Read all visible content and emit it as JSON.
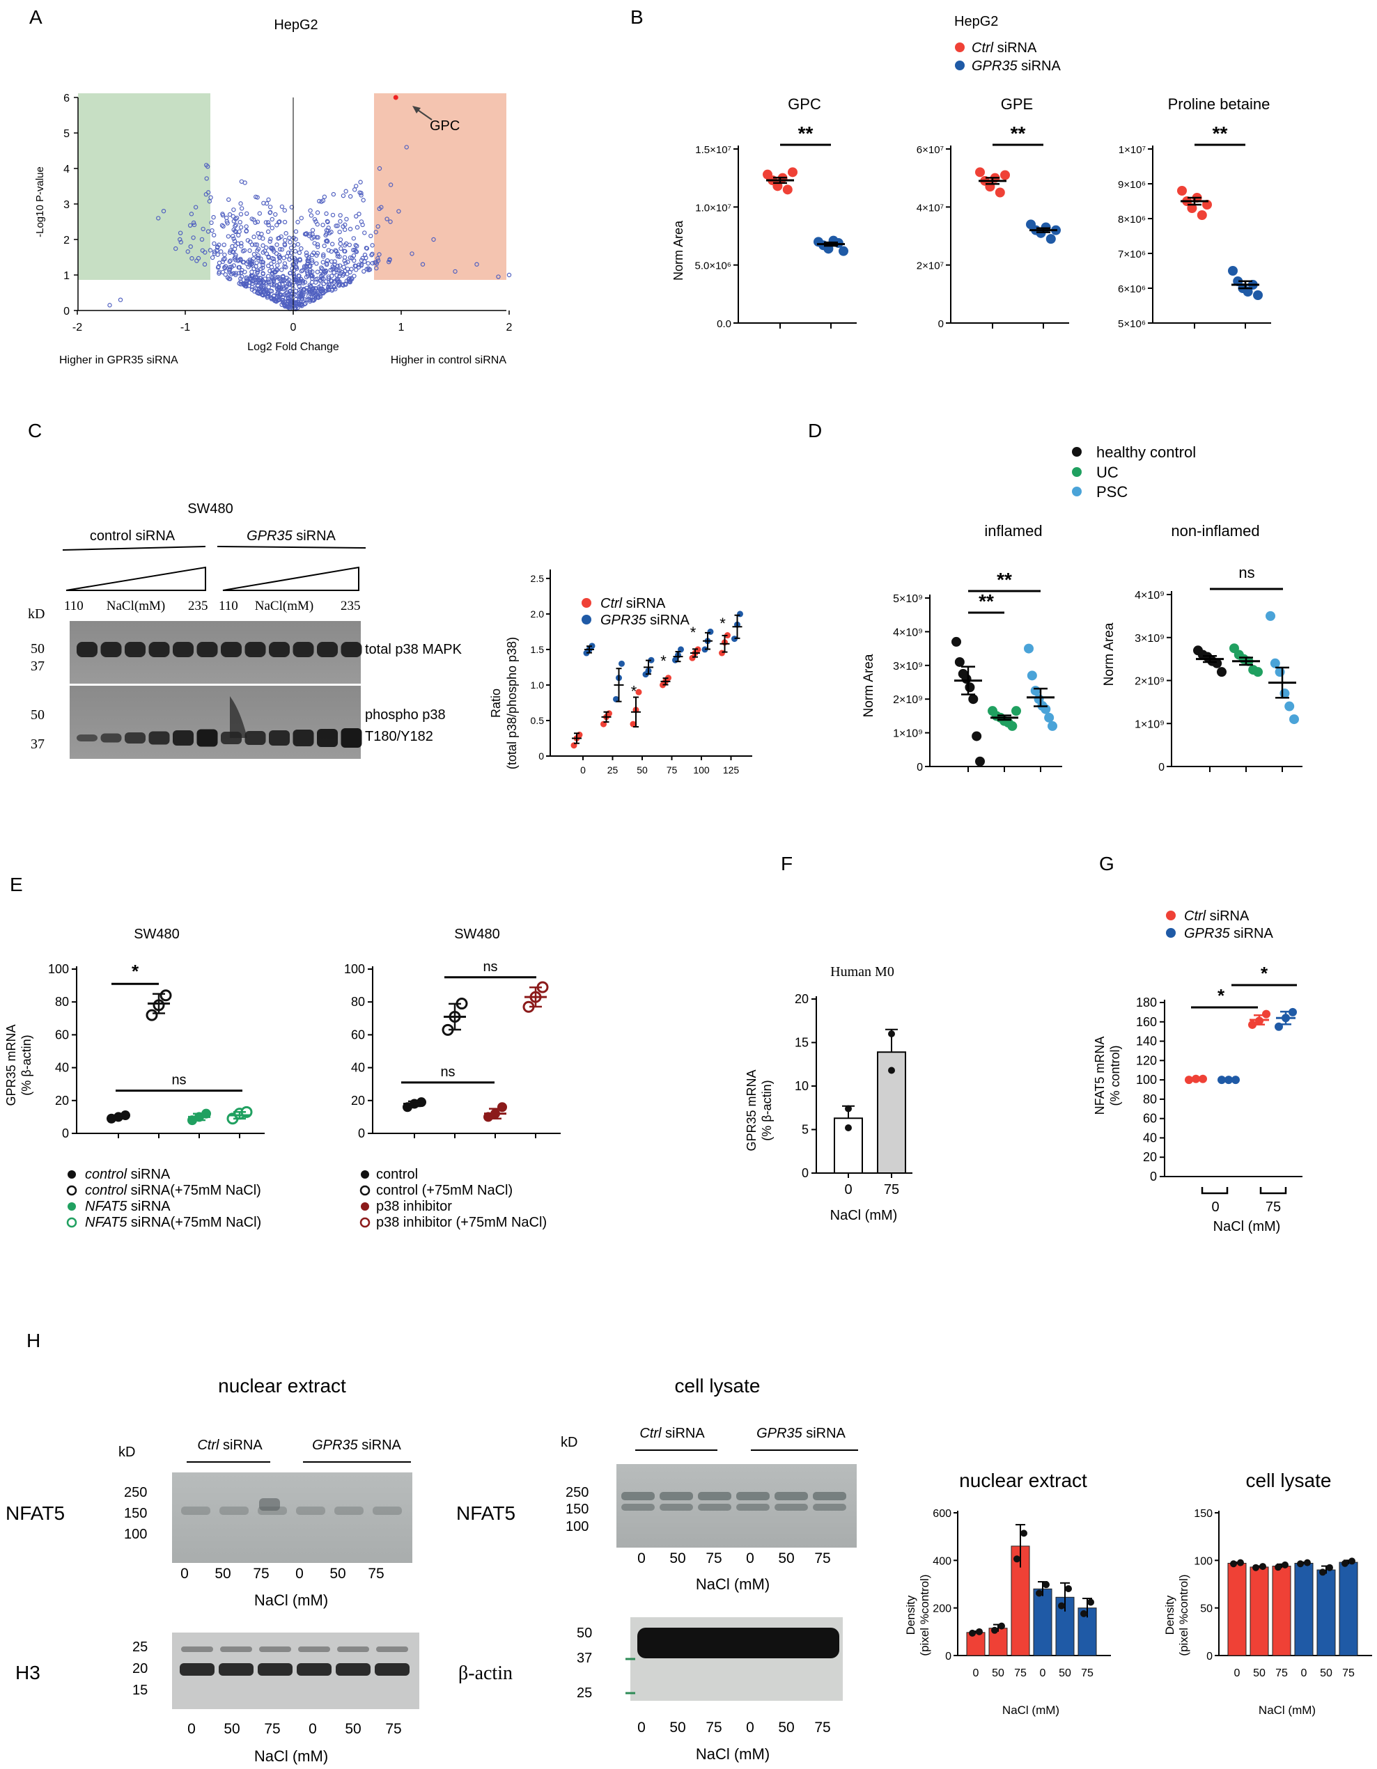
{
  "colors": {
    "red": "#ef4136",
    "blue": "#1f5aa6",
    "green": "#20a060",
    "black": "#111111",
    "lightblue": "#4aa3d8",
    "darkred": "#8b1a1a",
    "gray": "#d0d0d0",
    "greenBox": "#c7dfc4",
    "redBox": "#f4c4b0",
    "dotEdge": "#3b4db0"
  },
  "panels": {
    "A": {
      "letter": "A",
      "title": "HepG2",
      "xlabel": "Log2 Fold Change",
      "ylabel": "-Log10 P-value",
      "left_note": "Higher in GPR35 siRNA",
      "right_note": "Higher in control siRNA",
      "annotation": "GPC",
      "xticks": [
        "-2",
        "-1",
        "0",
        "1",
        "2"
      ],
      "yticks": [
        "0",
        "1",
        "2",
        "3",
        "4",
        "5",
        "6"
      ]
    },
    "B": {
      "letter": "B",
      "title": "HepG2",
      "legend_ctrl_italic": "Ctrl",
      "legend_ctrl_rest": " siRNA",
      "legend_gpr_italic": "GPR35",
      "legend_gpr_rest": " siRNA",
      "ylabel": "Norm Area",
      "sig": "**",
      "sub1": {
        "title": "GPC",
        "yticks": [
          "0.0",
          "5.0×10⁶",
          "1.0×10⁷",
          "1.5×10⁷"
        ]
      },
      "sub2": {
        "title": "GPE",
        "yticks": [
          "0",
          "2×10⁷",
          "4×10⁷",
          "6×10⁷"
        ]
      },
      "sub3": {
        "title": "Proline betaine",
        "yticks": [
          "5×10⁶",
          "6×10⁶",
          "7×10⁶",
          "8×10⁶",
          "9×10⁶",
          "1×10⁷"
        ]
      }
    },
    "C": {
      "letter": "C",
      "cell": "SW480",
      "ctrl_label": "control siRNA",
      "gpr_label_italic": "GPR35",
      "gpr_label_rest": " siRNA",
      "kd": "kD",
      "nacl": "NaCl(mM)",
      "n110": "110",
      "n235": "235",
      "marker50": "50",
      "marker37": "37",
      "blot1": "total p38 MAPK",
      "blot2a": "phospho p38",
      "blot2b": "T180/Y182",
      "legend_ctrl_italic": "Ctrl",
      "legend_ctrl_rest": " siRNA",
      "legend_gpr_italic": "GPR35",
      "legend_gpr_rest": " siRNA",
      "ylabel1": "Ratio",
      "ylabel2": "(total p38/phospho p38)",
      "yticks": [
        "0",
        "0.5",
        "1.0",
        "1.5",
        "2.0",
        "2.5"
      ],
      "xticks": [
        "0",
        "25",
        "50",
        "75",
        "100",
        "125"
      ],
      "star": "*"
    },
    "D": {
      "letter": "D",
      "legend": [
        "healthy control",
        "UC",
        "PSC"
      ],
      "title1": "inflamed",
      "title2": "non-inflamed",
      "ylabel": "Norm Area",
      "yticks": [
        "0",
        "1×10⁹",
        "2×10⁹",
        "3×10⁹",
        "4×10⁹",
        "5×10⁹"
      ],
      "sig": "**",
      "ns": "ns"
    },
    "E": {
      "letter": "E",
      "cell": "SW480",
      "ylabel1": "GPR35 mRNA",
      "ylabel2": "(% β-actin)",
      "yticks": [
        "0",
        "20",
        "40",
        "60",
        "80",
        "100"
      ],
      "star": "*",
      "ns": "ns",
      "legend1": [
        {
          "i": "control",
          "r": " siRNA"
        },
        {
          "i": "control",
          "r": " siRNA(+75mM NaCl)"
        },
        {
          "i": "NFAT5",
          "r": " siRNA"
        },
        {
          "i": "NFAT5",
          "r": " siRNA(+75mM NaCl)"
        }
      ],
      "legend2": [
        "control",
        "control (+75mM NaCl)",
        "p38 inhibitor",
        "p38 inhibitor (+75mM NaCl)"
      ]
    },
    "F": {
      "letter": "F",
      "title": "Human M0",
      "ylabel1": "GPR35 mRNA",
      "ylabel2": "(% β-actin)",
      "yticks": [
        "0",
        "5",
        "10",
        "15",
        "20"
      ],
      "xticks": [
        "0",
        "75"
      ],
      "xlabel": "NaCl (mM)"
    },
    "G": {
      "letter": "G",
      "legend_ctrl_italic": "Ctrl",
      "legend_ctrl_rest": " siRNA",
      "legend_gpr_italic": "GPR35",
      "legend_gpr_rest": " siRNA",
      "ylabel1": "NFAT5 mRNA",
      "ylabel2": "(% control)",
      "yticks": [
        "0",
        "20",
        "40",
        "60",
        "80",
        "100",
        "120",
        "140",
        "160",
        "180"
      ],
      "xticks": [
        "0",
        "75"
      ],
      "xlabel": "NaCl (mM)",
      "star": "*"
    },
    "H": {
      "letter": "H",
      "nuclear": "nuclear extract",
      "lysate": "cell lysate",
      "ctrl_italic": "Ctrl",
      "ctrl_rest": " siRNA",
      "gpr_italic": "GPR35",
      "gpr_rest": " siRNA",
      "kd": "kD",
      "nfat5": "NFAT5",
      "h3": "H3",
      "bactin": "β-actin",
      "mw_n": [
        "250",
        "150",
        "100"
      ],
      "mw_h3": [
        "25",
        "20",
        "15"
      ],
      "mw_l": [
        "250",
        "150",
        "100"
      ],
      "mw_b": [
        "50",
        "37",
        "25"
      ],
      "lanes": [
        "0",
        "50",
        "75",
        "0",
        "50",
        "75"
      ],
      "nacl": "NaCl (mM)",
      "ylabel1": "Density",
      "ylabel2": "(pixel %control)",
      "yticks_n": [
        "0",
        "200",
        "400",
        "600"
      ],
      "yticks_l": [
        "0",
        "50",
        "100",
        "150"
      ]
    }
  },
  "chart_data": [
    {
      "panel": "A",
      "type": "scatter",
      "title": "HepG2",
      "xlabel": "Log2 Fold Change",
      "ylabel": "-Log10 P-value",
      "xlim": [
        -2,
        2
      ],
      "ylim": [
        0,
        6.2
      ],
      "annotations": [
        {
          "label": "GPC",
          "x": 0.95,
          "y": 6.0
        }
      ]
    },
    {
      "panel": "B",
      "type": "scatter",
      "title": "GPC",
      "ylabel": "Norm Area",
      "ylim": [
        0,
        15000000
      ],
      "series": [
        {
          "name": "Ctrl siRNA",
          "values": [
            12800000,
            12300000,
            11800000,
            12500000,
            11500000,
            13000000
          ],
          "mean": 12300000
        },
        {
          "name": "GPR35 siRNA",
          "values": [
            7000000,
            6700000,
            6400000,
            7100000,
            6900000,
            6200000
          ],
          "mean": 6800000
        }
      ]
    },
    {
      "panel": "B",
      "type": "scatter",
      "title": "GPE",
      "ylabel": "Norm Area",
      "ylim": [
        0,
        60000000
      ],
      "series": [
        {
          "name": "Ctrl siRNA",
          "values": [
            52000000,
            49000000,
            47000000,
            50000000,
            45000000,
            51000000
          ],
          "mean": 49000000
        },
        {
          "name": "GPR35 siRNA",
          "values": [
            34000000,
            32000000,
            31000000,
            33000000,
            29000000,
            32000000
          ],
          "mean": 32000000
        }
      ]
    },
    {
      "panel": "B",
      "type": "scatter",
      "title": "Proline betaine",
      "ylabel": "Norm Area",
      "ylim": [
        5000000,
        10000000
      ],
      "series": [
        {
          "name": "Ctrl siRNA",
          "values": [
            8800000,
            8500000,
            8300000,
            8600000,
            8100000,
            8400000
          ],
          "mean": 8500000
        },
        {
          "name": "GPR35 siRNA",
          "values": [
            6500000,
            6200000,
            6000000,
            5900000,
            6100000,
            5800000
          ],
          "mean": 6100000
        }
      ]
    },
    {
      "panel": "C",
      "type": "scatter",
      "ylabel": "Ratio (total p38/phospho p38)",
      "x": [
        0,
        25,
        50,
        75,
        100,
        125
      ],
      "ylim": [
        0,
        2.5
      ],
      "series": [
        {
          "name": "Ctrl siRNA",
          "means": [
            0.25,
            0.55,
            0.62,
            1.05,
            1.45,
            1.58
          ],
          "points": [
            [
              0.15,
              0.25,
              0.3
            ],
            [
              0.45,
              0.55,
              0.6
            ],
            [
              0.45,
              0.65,
              0.9
            ],
            [
              1.0,
              1.05,
              1.1
            ],
            [
              1.38,
              1.45,
              1.5
            ],
            [
              1.45,
              1.6,
              1.7
            ]
          ]
        },
        {
          "name": "GPR35 siRNA",
          "means": [
            1.5,
            1.0,
            1.25,
            1.4,
            1.62,
            1.82
          ],
          "points": [
            [
              1.45,
              1.5,
              1.55
            ],
            [
              0.8,
              1.1,
              1.3
            ],
            [
              1.15,
              1.2,
              1.35
            ],
            [
              1.35,
              1.42,
              1.5
            ],
            [
              1.5,
              1.62,
              1.75
            ],
            [
              1.65,
              1.85,
              2.0
            ]
          ]
        }
      ]
    },
    {
      "panel": "D",
      "type": "scatter",
      "title": "inflamed",
      "ylabel": "Norm Area",
      "ylim": [
        0,
        5000000000
      ],
      "series": [
        {
          "name": "healthy control",
          "values": [
            3700000000,
            3100000000,
            2750000000,
            2600000000,
            2350000000,
            2000000000,
            900000000,
            150000000
          ],
          "mean": 2550000000
        },
        {
          "name": "UC",
          "values": [
            1650000000,
            1500000000,
            1450000000,
            1350000000,
            1300000000,
            1200000000,
            1650000000
          ],
          "mean": 1450000000
        },
        {
          "name": "PSC",
          "values": [
            3500000000,
            2700000000,
            2250000000,
            2000000000,
            1800000000,
            1700000000,
            1450000000,
            1200000000
          ],
          "mean": 2050000000
        }
      ]
    },
    {
      "panel": "D",
      "type": "scatter",
      "title": "non-inflamed",
      "ylabel": "Norm Area",
      "ylim": [
        0,
        4000000000
      ],
      "series": [
        {
          "name": "healthy control",
          "values": [
            2700000000,
            2600000000,
            2550000000,
            2450000000,
            2400000000,
            2200000000
          ],
          "mean": 2500000000
        },
        {
          "name": "UC",
          "values": [
            2750000000,
            2600000000,
            2500000000,
            2450000000,
            2250000000,
            2200000000
          ],
          "mean": 2450000000
        },
        {
          "name": "PSC",
          "values": [
            3500000000,
            2400000000,
            2200000000,
            1700000000,
            1400000000,
            1100000000
          ],
          "mean": 1950000000
        }
      ]
    },
    {
      "panel": "E",
      "type": "scatter",
      "ylabel": "GPR35 mRNA (% β-actin)",
      "ylim": [
        0,
        100
      ],
      "series": [
        {
          "name": "control siRNA",
          "values": [
            9,
            10,
            11
          ],
          "mean": 10
        },
        {
          "name": "control siRNA(+75mM NaCl)",
          "values": [
            72,
            78,
            84
          ],
          "mean": 79
        },
        {
          "name": "NFAT5 siRNA",
          "values": [
            8,
            10,
            12
          ],
          "mean": 10
        },
        {
          "name": "NFAT5 siRNA(+75mM NaCl)",
          "values": [
            9,
            12,
            13
          ],
          "mean": 11
        }
      ]
    },
    {
      "panel": "E",
      "type": "scatter",
      "ylabel": "GPR35 mRNA (% β-actin)",
      "ylim": [
        0,
        100
      ],
      "series": [
        {
          "name": "control",
          "values": [
            16,
            18,
            19
          ],
          "mean": 18
        },
        {
          "name": "control (+75mM NaCl)",
          "values": [
            63,
            71,
            79
          ],
          "mean": 71
        },
        {
          "name": "p38 inhibitor",
          "values": [
            10,
            12,
            16
          ],
          "mean": 12
        },
        {
          "name": "p38 inhibitor (+75mM NaCl)",
          "values": [
            77,
            83,
            89
          ],
          "mean": 83
        }
      ]
    },
    {
      "panel": "F",
      "type": "bar",
      "title": "Human M0",
      "ylabel": "GPR35 mRNA (% β-actin)",
      "xlabel": "NaCl (mM)",
      "categories": [
        "0",
        "75"
      ],
      "values": [
        6.3,
        13.9
      ],
      "errors": [
        1.4,
        2.6
      ],
      "points": [
        [
          5.2,
          7.4
        ],
        [
          11.8,
          16.0
        ]
      ],
      "ylim": [
        0,
        20
      ]
    },
    {
      "panel": "G",
      "type": "scatter",
      "ylabel": "NFAT5 mRNA (% control)",
      "xlabel": "NaCl (mM)",
      "ylim": [
        0,
        180
      ],
      "series": [
        {
          "name": "Ctrl siRNA",
          "x": "0",
          "values": [
            100,
            101,
            101
          ],
          "mean": 101
        },
        {
          "name": "GPR35 siRNA",
          "x": "0",
          "values": [
            100,
            100,
            100
          ],
          "mean": 100
        },
        {
          "name": "Ctrl siRNA",
          "x": "75",
          "values": [
            157,
            161,
            168
          ],
          "mean": 162
        },
        {
          "name": "GPR35 siRNA",
          "x": "75",
          "values": [
            155,
            164,
            170
          ],
          "mean": 164
        }
      ]
    },
    {
      "panel": "H",
      "type": "bar",
      "title": "nuclear extract",
      "ylabel": "Density (pixel %control)",
      "xlabel": "NaCl (mM)",
      "categories": [
        "0",
        "50",
        "75",
        "0",
        "50",
        "75"
      ],
      "values": [
        97,
        115,
        460,
        280,
        245,
        200
      ],
      "errors": [
        5,
        15,
        90,
        30,
        60,
        40
      ],
      "ylim": [
        0,
        600
      ]
    },
    {
      "panel": "H",
      "type": "bar",
      "title": "cell lysate",
      "ylabel": "Density (pixel %control)",
      "xlabel": "NaCl (mM)",
      "categories": [
        "0",
        "50",
        "75",
        "0",
        "50",
        "75"
      ],
      "values": [
        97,
        93,
        94,
        97,
        90,
        98
      ],
      "errors": [
        1,
        1,
        2,
        1,
        4,
        2
      ],
      "ylim": [
        0,
        150
      ]
    }
  ]
}
